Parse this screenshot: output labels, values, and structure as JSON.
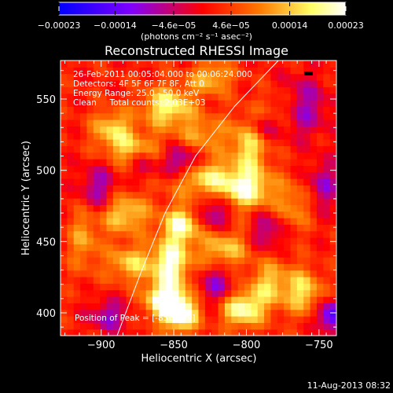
{
  "chart_data": {
    "type": "heatmap",
    "title": "Reconstructed RHESSI Image",
    "xlabel": "Heliocentric X (arcsec)",
    "ylabel": "Heliocentric Y (arcsec)",
    "xlim": [
      -928,
      -738
    ],
    "ylim": [
      384,
      577
    ],
    "xticks": [
      -900,
      -850,
      -800,
      -750
    ],
    "xtick_labels": [
      "−900",
      "−850",
      "−800",
      "−750"
    ],
    "yticks": [
      400,
      450,
      500,
      550
    ],
    "ytick_labels": [
      "400",
      "450",
      "500",
      "550"
    ],
    "colorbar": {
      "min": -0.00023,
      "max": 0.00023,
      "ticks": [
        -0.00023,
        -0.00014,
        -4.6e-05,
        4.6e-05,
        0.00014,
        0.00023
      ],
      "tick_labels": [
        "−0.00023",
        "−0.00014",
        "−4.6e−05",
        "4.6e−05",
        "0.00014",
        "0.00023"
      ],
      "unit_label": "(photons cm⁻² s⁻¹ asec⁻²)",
      "colors": [
        "#0000ff",
        "#7f00ff",
        "#ff0000",
        "#ff7a00",
        "#ffff66",
        "#ffffff"
      ]
    },
    "annotations": {
      "line1": "26-Feb-2011 00:05:04.000 to 00:06:24.000",
      "line2": "Detectors: 4F 5F 6F 7F 8F, Att 0",
      "line3": "Energy Range: 25.0 - 50.0 keV",
      "line4": "Clean     Total counts: 2.03E+03",
      "peak": "Position of Peak = [-856,409]"
    },
    "peak_position": [
      -856,
      409
    ],
    "limb_curve": [
      [
        -889,
        384
      ],
      [
        -872,
        430
      ],
      [
        -856,
        470
      ],
      [
        -835,
        510
      ],
      [
        -808,
        545
      ],
      [
        -778,
        577
      ]
    ],
    "sources": [
      {
        "x": -845,
        "y": 400,
        "amp": 0.00023,
        "sx": 8,
        "sy": 9
      },
      {
        "x": -857,
        "y": 409,
        "amp": 0.00021,
        "sx": 9,
        "sy": 9
      },
      {
        "x": -852,
        "y": 435,
        "amp": 0.0002,
        "sx": 9,
        "sy": 12
      },
      {
        "x": -845,
        "y": 462,
        "amp": 0.00018,
        "sx": 9,
        "sy": 9
      },
      {
        "x": -880,
        "y": 435,
        "amp": 0.00013,
        "sx": 11,
        "sy": 9
      },
      {
        "x": -884,
        "y": 470,
        "amp": 0.00014,
        "sx": 12,
        "sy": 10
      },
      {
        "x": -832,
        "y": 495,
        "amp": 0.00016,
        "sx": 16,
        "sy": 9
      },
      {
        "x": -800,
        "y": 487,
        "amp": 0.00018,
        "sx": 13,
        "sy": 10
      },
      {
        "x": -798,
        "y": 518,
        "amp": 0.00015,
        "sx": 9,
        "sy": 14
      },
      {
        "x": -824,
        "y": 565,
        "amp": 0.00012,
        "sx": 10,
        "sy": 8
      },
      {
        "x": -854,
        "y": 545,
        "amp": 0.00017,
        "sx": 12,
        "sy": 10
      },
      {
        "x": -892,
        "y": 530,
        "amp": 0.00013,
        "sx": 10,
        "sy": 9
      },
      {
        "x": -877,
        "y": 515,
        "amp": 0.00012,
        "sx": 14,
        "sy": 8
      },
      {
        "x": -816,
        "y": 445,
        "amp": 0.00013,
        "sx": 12,
        "sy": 10
      },
      {
        "x": -803,
        "y": 403,
        "amp": 0.00019,
        "sx": 10,
        "sy": 9
      },
      {
        "x": -783,
        "y": 420,
        "amp": 0.00013,
        "sx": 10,
        "sy": 12
      },
      {
        "x": -760,
        "y": 415,
        "amp": 0.00014,
        "sx": 8,
        "sy": 11
      },
      {
        "x": -768,
        "y": 475,
        "amp": 9e-05,
        "sx": 9,
        "sy": 12
      },
      {
        "x": -830,
        "y": 525,
        "amp": 0.0001,
        "sx": 12,
        "sy": 9
      },
      {
        "x": -912,
        "y": 452,
        "amp": 9e-05,
        "sx": 8,
        "sy": 16
      },
      {
        "x": -775,
        "y": 545,
        "amp": 8e-05,
        "sx": 10,
        "sy": 9
      },
      {
        "x": -845,
        "y": 505,
        "amp": -0.00016,
        "sx": 9,
        "sy": 9
      },
      {
        "x": -762,
        "y": 545,
        "amp": -0.00012,
        "sx": 12,
        "sy": 14
      },
      {
        "x": -747,
        "y": 490,
        "amp": -0.0001,
        "sx": 8,
        "sy": 12
      },
      {
        "x": -822,
        "y": 470,
        "amp": -0.00012,
        "sx": 8,
        "sy": 9
      },
      {
        "x": -902,
        "y": 487,
        "amp": -0.00011,
        "sx": 9,
        "sy": 12
      },
      {
        "x": -820,
        "y": 420,
        "amp": -0.00011,
        "sx": 9,
        "sy": 10
      },
      {
        "x": -742,
        "y": 398,
        "amp": -0.00018,
        "sx": 7,
        "sy": 7
      },
      {
        "x": -895,
        "y": 398,
        "amp": -0.00011,
        "sx": 9,
        "sy": 8
      },
      {
        "x": -870,
        "y": 505,
        "amp": -9e-05,
        "sx": 6,
        "sy": 8
      },
      {
        "x": -785,
        "y": 458,
        "amp": -0.0001,
        "sx": 8,
        "sy": 10
      },
      {
        "x": -790,
        "y": 530,
        "amp": -9e-05,
        "sx": 7,
        "sy": 7
      }
    ],
    "grid": false,
    "legend": "colorbar-top"
  },
  "footer": {
    "timestamp": "11-Aug-2013 08:32"
  }
}
